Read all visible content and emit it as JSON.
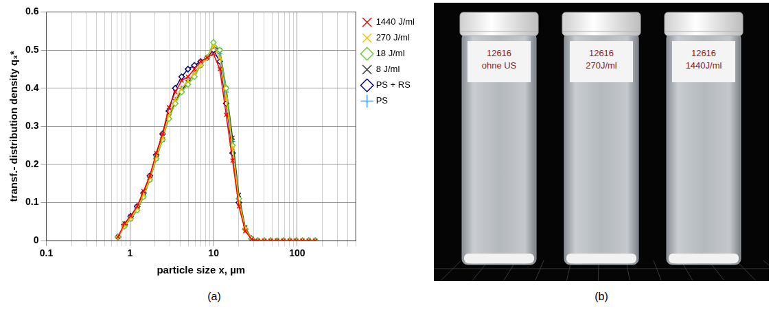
{
  "chart_data": {
    "type": "line",
    "xlabel": "particle size x, µm",
    "ylabel": "transf.- distribution density q₃*",
    "log": "x",
    "grid": true,
    "legend": "right",
    "xlim": [
      0.1,
      500
    ],
    "xticks": [
      0.1,
      1,
      10,
      100
    ],
    "ylim": [
      0,
      0.6
    ],
    "yticks": [
      0,
      0.1,
      0.2,
      0.3,
      0.4,
      0.5,
      0.6
    ],
    "x": [
      0.72,
      0.86,
      1.02,
      1.22,
      1.45,
      1.73,
      2.06,
      2.45,
      2.92,
      3.48,
      4.15,
      4.94,
      5.89,
      7.01,
      8.36,
      9.96,
      11.86,
      14.13,
      16.84,
      20.06,
      23.9,
      28.47,
      33.9,
      40.4,
      48.1,
      57.3,
      68.3,
      81.4,
      96.9,
      115.4,
      137.5,
      163.8
    ],
    "series": [
      {
        "name": "1440 J/ml",
        "color": "#ff0000",
        "marker": "x",
        "values": [
          0.01,
          0.045,
          0.065,
          0.09,
          0.13,
          0.17,
          0.23,
          0.28,
          0.35,
          0.39,
          0.42,
          0.43,
          0.45,
          0.47,
          0.48,
          0.49,
          0.45,
          0.33,
          0.21,
          0.09,
          0.025,
          0.004,
          0,
          0,
          0,
          0,
          0,
          0,
          0,
          0,
          0,
          0
        ]
      },
      {
        "name": "270 J/ml",
        "color": "#ffc000",
        "marker": "x",
        "values": [
          0.01,
          0.04,
          0.06,
          0.085,
          0.12,
          0.165,
          0.22,
          0.27,
          0.33,
          0.37,
          0.4,
          0.42,
          0.44,
          0.46,
          0.48,
          0.51,
          0.48,
          0.37,
          0.24,
          0.1,
          0.03,
          0.005,
          0,
          0,
          0,
          0,
          0,
          0,
          0,
          0,
          0,
          0
        ]
      },
      {
        "name": "18 J/ml",
        "color": "#66cc33",
        "marker": "diamond",
        "values": [
          0.01,
          0.038,
          0.058,
          0.08,
          0.115,
          0.16,
          0.215,
          0.265,
          0.32,
          0.36,
          0.39,
          0.41,
          0.43,
          0.46,
          0.48,
          0.52,
          0.5,
          0.4,
          0.25,
          0.11,
          0.03,
          0.005,
          0,
          0,
          0,
          0,
          0,
          0,
          0,
          0,
          0,
          0
        ]
      },
      {
        "name": "8 J/ml",
        "color": "#333333",
        "marker": "x",
        "values": [
          0.01,
          0.038,
          0.057,
          0.08,
          0.115,
          0.16,
          0.215,
          0.265,
          0.325,
          0.365,
          0.395,
          0.415,
          0.44,
          0.46,
          0.48,
          0.51,
          0.5,
          0.4,
          0.27,
          0.12,
          0.035,
          0.006,
          0,
          0,
          0,
          0,
          0,
          0,
          0,
          0,
          0,
          0
        ]
      },
      {
        "name": "PS + RS",
        "color": "#000080",
        "marker": "diamond",
        "values": [
          0.01,
          0.042,
          0.064,
          0.09,
          0.125,
          0.17,
          0.225,
          0.28,
          0.34,
          0.4,
          0.43,
          0.45,
          0.46,
          0.47,
          0.48,
          0.5,
          0.47,
          0.36,
          0.23,
          0.1,
          0.03,
          0.005,
          0,
          0,
          0,
          0,
          0,
          0,
          0,
          0,
          0,
          0
        ]
      },
      {
        "name": "PS",
        "color": "#3399ff",
        "marker": "plus",
        "values": [
          0.01,
          0.04,
          0.06,
          0.085,
          0.12,
          0.165,
          0.22,
          0.27,
          0.33,
          0.37,
          0.4,
          0.42,
          0.44,
          0.46,
          0.48,
          0.5,
          0.49,
          0.39,
          0.26,
          0.11,
          0.03,
          0.005,
          0,
          0,
          0,
          0,
          0,
          0,
          0,
          0,
          0,
          0
        ]
      }
    ],
    "caption": "(a)"
  },
  "photo": {
    "caption": "(b)",
    "vials": [
      {
        "label": [
          "12616",
          "ohne US"
        ]
      },
      {
        "label": [
          "12616",
          "270J/ml"
        ]
      },
      {
        "label": [
          "12616",
          "1440J/ml"
        ]
      }
    ]
  }
}
